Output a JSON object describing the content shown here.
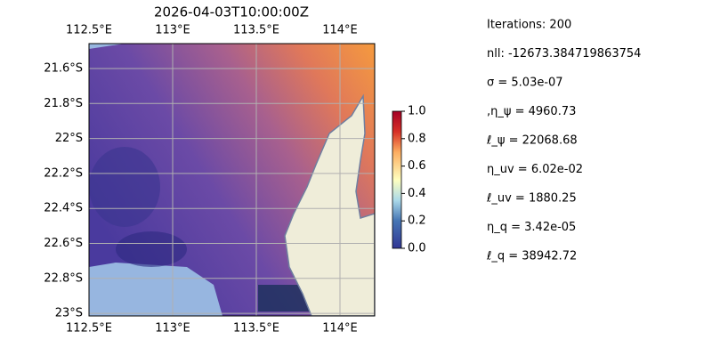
{
  "map": {
    "title": "2026-04-03T10:00:00Z",
    "lon_labels": [
      "112.5°E",
      "113°E",
      "113.5°E",
      "114°E"
    ],
    "lat_labels": [
      "21.6°S",
      "21.8°S",
      "22°S",
      "22.2°S",
      "22.4°S",
      "22.6°S",
      "22.8°S",
      "23°S"
    ],
    "colorbar": {
      "lim": [
        0,
        1
      ],
      "ticks": [
        {
          "value": 0,
          "label": "0.0"
        },
        {
          "value": 0.2,
          "label": "0.2"
        },
        {
          "value": 0.4,
          "label": "0.4"
        },
        {
          "value": 0.6,
          "label": "0.6"
        },
        {
          "value": 0.8,
          "label": "0.8"
        },
        {
          "value": 1,
          "label": "1.0"
        }
      ]
    }
  },
  "info": [
    "Iterations: 200",
    "nll: -12673.384719863754",
    "σ = 5.03e-07",
    ",η_ψ = 4960.73",
    "ℓ_ψ = 22068.68",
    "η_uv = 6.02e-02",
    "ℓ_uv = 1880.25",
    "η_q = 3.42e-05",
    "ℓ_q = 38942.72"
  ]
}
